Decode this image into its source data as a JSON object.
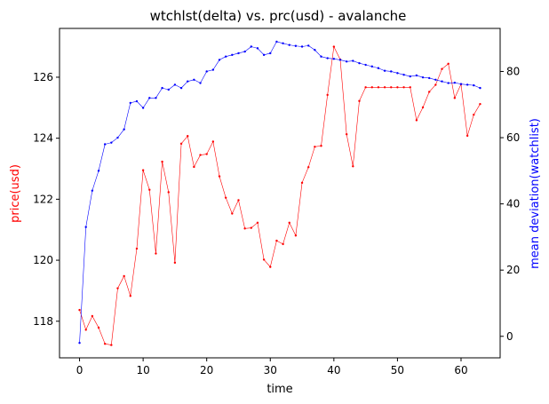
{
  "chart_data": {
    "type": "line",
    "title": "wtchlst(delta) vs. prc(usd) - avalanche",
    "xlabel": "time",
    "ylabel_left": "price(usd)",
    "ylabel_right": "mean deviation(watchlist)",
    "grid": false,
    "xlim": [
      -3.15,
      66.15
    ],
    "ylim_left": [
      116.8,
      127.6
    ],
    "ylim_right": [
      -6.5,
      93
    ],
    "x_ticks": [
      0,
      10,
      20,
      30,
      40,
      50,
      60
    ],
    "y_ticks_left": [
      118,
      120,
      122,
      124,
      126
    ],
    "y_ticks_right": [
      0,
      20,
      40,
      60,
      80
    ],
    "x": [
      0,
      1,
      2,
      3,
      4,
      5,
      6,
      7,
      8,
      9,
      10,
      11,
      12,
      13,
      14,
      15,
      16,
      17,
      18,
      19,
      20,
      21,
      22,
      23,
      24,
      25,
      26,
      27,
      28,
      29,
      30,
      31,
      32,
      33,
      34,
      35,
      36,
      37,
      38,
      39,
      40,
      41,
      42,
      43,
      44,
      45,
      46,
      47,
      48,
      49,
      50,
      51,
      52,
      53,
      54,
      55,
      56,
      57,
      58,
      59,
      60,
      61,
      62,
      63
    ],
    "series": [
      {
        "axis": "left",
        "color": "#ff0000",
        "values": [
          118.37,
          117.72,
          118.17,
          117.79,
          117.26,
          117.22,
          119.08,
          119.48,
          118.83,
          120.38,
          122.95,
          122.31,
          120.22,
          123.23,
          122.23,
          119.92,
          123.82,
          124.07,
          123.06,
          123.45,
          123.48,
          123.89,
          122.75,
          122.05,
          121.53,
          121.97,
          121.04,
          121.06,
          121.23,
          120.02,
          119.78,
          120.64,
          120.53,
          121.23,
          120.81,
          122.54,
          123.05,
          123.72,
          123.75,
          125.42,
          127.0,
          126.58,
          124.13,
          123.08,
          125.22,
          125.67,
          125.67,
          125.67,
          125.67,
          125.67,
          125.67,
          125.67,
          125.67,
          124.59,
          125.01,
          125.52,
          125.75,
          126.27,
          126.44,
          125.32,
          125.77,
          124.08,
          124.77,
          125.12
        ]
      },
      {
        "axis": "right",
        "color": "#0000ff",
        "values": [
          -2.0,
          33.0,
          44.0,
          50.0,
          58.0,
          58.5,
          60.0,
          62.5,
          70.5,
          71.0,
          69.0,
          72.0,
          72.0,
          75.0,
          74.5,
          76.0,
          75.0,
          77.0,
          77.5,
          76.5,
          80.0,
          80.5,
          83.5,
          84.5,
          85.0,
          85.5,
          86.0,
          87.5,
          87.0,
          85.0,
          85.5,
          89.0,
          88.5,
          88.0,
          87.7,
          87.5,
          87.8,
          86.5,
          84.5,
          84.0,
          83.8,
          83.5,
          83.0,
          83.2,
          82.5,
          82.0,
          81.5,
          81.0,
          80.2,
          80.0,
          79.5,
          79.0,
          78.5,
          78.8,
          78.2,
          78.0,
          77.5,
          77.0,
          76.5,
          76.6,
          76.2,
          76.0,
          75.8,
          75.0
        ]
      }
    ]
  }
}
